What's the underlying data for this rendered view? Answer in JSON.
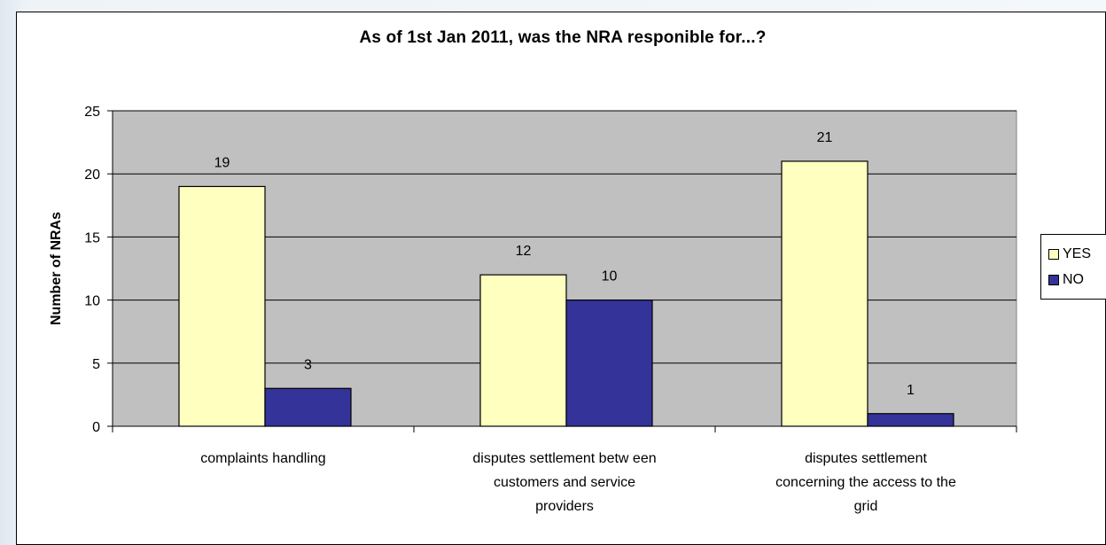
{
  "chart_data": {
    "type": "bar",
    "title": "As of 1st Jan 2011, was the NRA responible for...?",
    "ylabel": "Number of NRAs",
    "xlabel": "",
    "categories": [
      [
        "complaints handling"
      ],
      [
        "disputes settlement betw een",
        "customers and service",
        "providers"
      ],
      [
        "disputes settlement",
        "concerning the access to the",
        "grid"
      ]
    ],
    "series": [
      {
        "name": "YES",
        "values": [
          19,
          12,
          21
        ],
        "color": "#ffffc0"
      },
      {
        "name": "NO",
        "values": [
          3,
          10,
          1
        ],
        "color": "#333399"
      }
    ],
    "ylim": [
      0,
      25
    ],
    "yticks": [
      0,
      5,
      10,
      15,
      20,
      25
    ],
    "grid": true,
    "plot_background": "#c0c0c0",
    "legend_position": "right"
  }
}
